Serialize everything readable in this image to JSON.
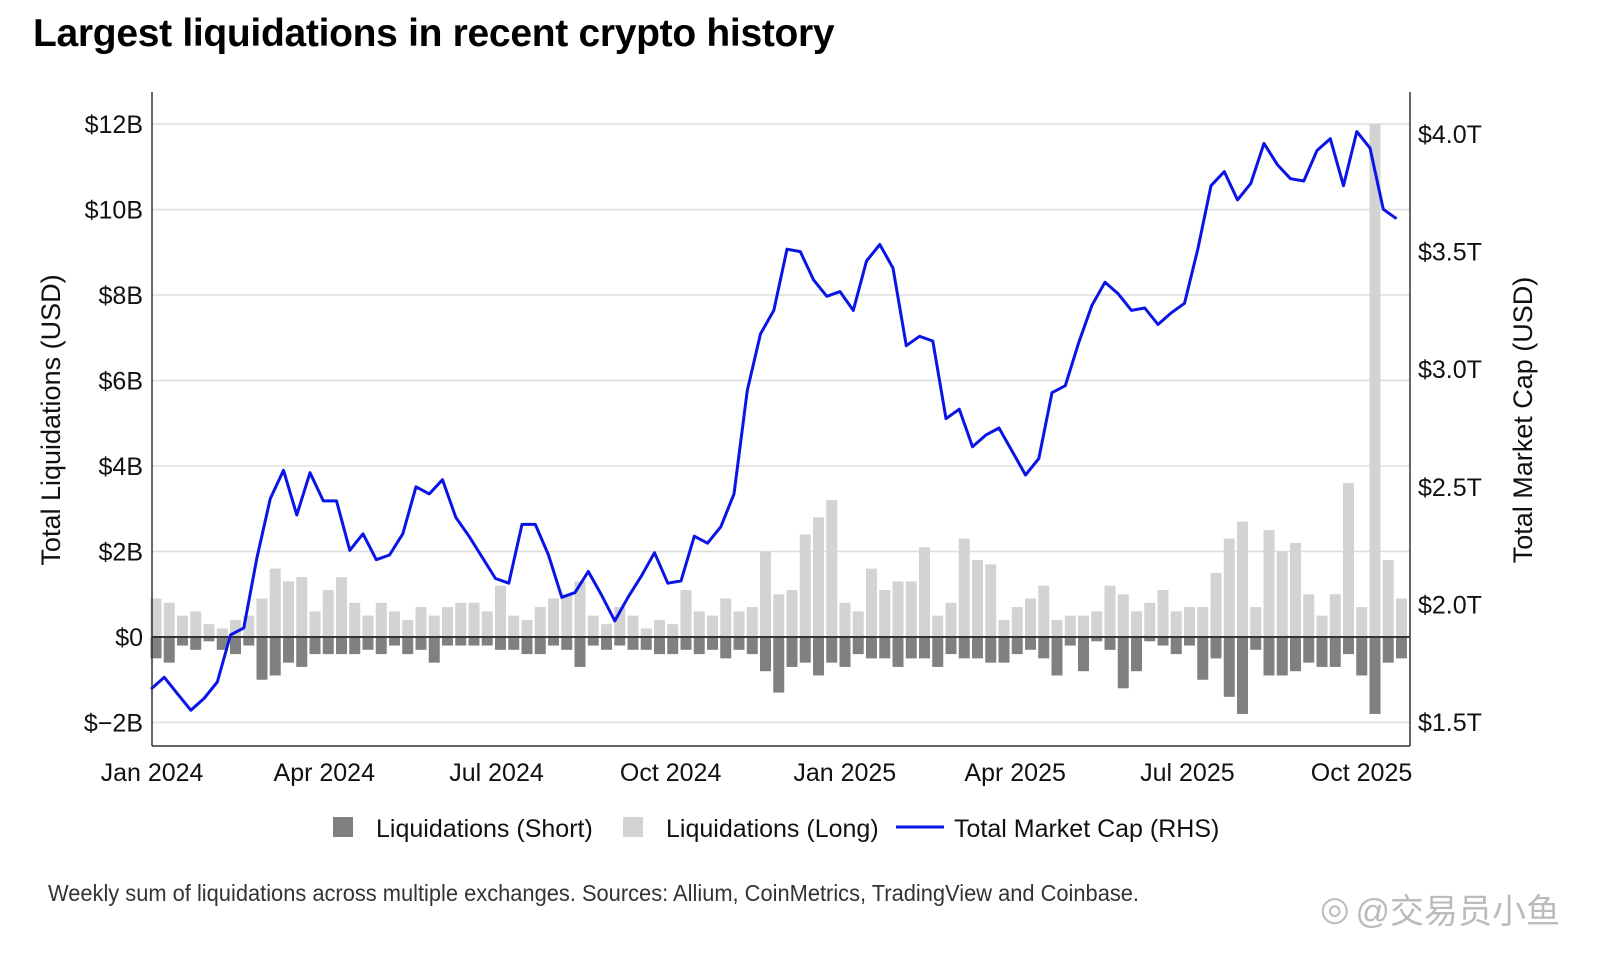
{
  "title": "Largest liquidations in recent crypto history",
  "footnote": "Weekly sum of liquidations across multiple exchanges. Sources: Allium, CoinMetrics, TradingView and Coinbase.",
  "watermark": "@交易员小鱼",
  "chart_data": {
    "type": "bar+line",
    "title": "Largest liquidations in recent crypto history",
    "ylabel": "Total Liquidations (USD)",
    "y2label": "Total Market Cap (USD)",
    "ylim": [
      -2.5,
      12.8
    ],
    "y2lim": [
      1.4,
      4.16
    ],
    "yticks": [
      {
        "v": 12,
        "label": "$12B"
      },
      {
        "v": 10,
        "label": "$10B"
      },
      {
        "v": 8,
        "label": "$8B"
      },
      {
        "v": 6,
        "label": "$6B"
      },
      {
        "v": 4,
        "label": "$4B"
      },
      {
        "v": 2,
        "label": "$2B"
      },
      {
        "v": 0,
        "label": "$0"
      },
      {
        "v": -2,
        "label": "$−2B"
      }
    ],
    "y2ticks": [
      {
        "v": 4.0,
        "label": "$4.0T"
      },
      {
        "v": 3.5,
        "label": "$3.5T"
      },
      {
        "v": 3.0,
        "label": "$3.0T"
      },
      {
        "v": 2.5,
        "label": "$2.5T"
      },
      {
        "v": 2.0,
        "label": "$2.0T"
      },
      {
        "v": 1.5,
        "label": "$1.5T"
      }
    ],
    "xticks": [
      {
        "date": "2024-01-01",
        "label": "Jan 2024"
      },
      {
        "date": "2024-04-01",
        "label": "Apr 2024"
      },
      {
        "date": "2024-07-01",
        "label": "Jul 2024"
      },
      {
        "date": "2024-10-01",
        "label": "Oct 2024"
      },
      {
        "date": "2025-01-01",
        "label": "Jan 2025"
      },
      {
        "date": "2025-04-01",
        "label": "Apr 2025"
      },
      {
        "date": "2025-07-01",
        "label": "Jul 2025"
      },
      {
        "date": "2025-10-01",
        "label": "Oct 2025"
      }
    ],
    "grid": true,
    "legend_position": "bottom",
    "colors": {
      "short": "#808080",
      "long": "#d3d3d3",
      "market_cap": "#0a14e6"
    },
    "x": [
      "2024-01-01",
      "2024-01-08",
      "2024-01-15",
      "2024-01-22",
      "2024-01-29",
      "2024-02-05",
      "2024-02-12",
      "2024-02-19",
      "2024-02-26",
      "2024-03-04",
      "2024-03-11",
      "2024-03-18",
      "2024-03-25",
      "2024-04-01",
      "2024-04-08",
      "2024-04-15",
      "2024-04-22",
      "2024-04-29",
      "2024-05-06",
      "2024-05-13",
      "2024-05-20",
      "2024-05-27",
      "2024-06-03",
      "2024-06-10",
      "2024-06-17",
      "2024-06-24",
      "2024-07-01",
      "2024-07-08",
      "2024-07-15",
      "2024-07-22",
      "2024-07-29",
      "2024-08-05",
      "2024-08-12",
      "2024-08-19",
      "2024-08-26",
      "2024-09-02",
      "2024-09-09",
      "2024-09-16",
      "2024-09-23",
      "2024-09-30",
      "2024-10-07",
      "2024-10-14",
      "2024-10-21",
      "2024-10-28",
      "2024-11-04",
      "2024-11-11",
      "2024-11-18",
      "2024-11-25",
      "2024-12-02",
      "2024-12-09",
      "2024-12-16",
      "2024-12-23",
      "2024-12-30",
      "2025-01-06",
      "2025-01-13",
      "2025-01-20",
      "2025-01-27",
      "2025-02-03",
      "2025-02-10",
      "2025-02-17",
      "2025-02-24",
      "2025-03-03",
      "2025-03-10",
      "2025-03-17",
      "2025-03-24",
      "2025-03-31",
      "2025-04-07",
      "2025-04-14",
      "2025-04-21",
      "2025-04-28",
      "2025-05-05",
      "2025-05-12",
      "2025-05-19",
      "2025-05-26",
      "2025-06-02",
      "2025-06-09",
      "2025-06-16",
      "2025-06-23",
      "2025-06-30",
      "2025-07-07",
      "2025-07-14",
      "2025-07-21",
      "2025-07-28",
      "2025-08-04",
      "2025-08-11",
      "2025-08-18",
      "2025-08-25",
      "2025-09-01",
      "2025-09-08",
      "2025-09-15",
      "2025-09-22",
      "2025-09-29",
      "2025-10-06",
      "2025-10-13",
      "2025-10-20"
    ],
    "series": [
      {
        "name": "Liquidations (Short)",
        "type": "bar",
        "unit": "B USD",
        "values": [
          -0.5,
          -0.6,
          -0.2,
          -0.3,
          -0.1,
          -0.3,
          -0.4,
          -0.2,
          -1.0,
          -0.9,
          -0.6,
          -0.7,
          -0.4,
          -0.4,
          -0.4,
          -0.4,
          -0.3,
          -0.4,
          -0.2,
          -0.4,
          -0.3,
          -0.6,
          -0.2,
          -0.2,
          -0.2,
          -0.2,
          -0.3,
          -0.3,
          -0.4,
          -0.4,
          -0.2,
          -0.3,
          -0.7,
          -0.2,
          -0.3,
          -0.2,
          -0.3,
          -0.3,
          -0.4,
          -0.4,
          -0.3,
          -0.4,
          -0.3,
          -0.5,
          -0.3,
          -0.4,
          -0.8,
          -1.3,
          -0.7,
          -0.6,
          -0.9,
          -0.6,
          -0.7,
          -0.4,
          -0.5,
          -0.5,
          -0.7,
          -0.5,
          -0.5,
          -0.7,
          -0.4,
          -0.5,
          -0.5,
          -0.6,
          -0.6,
          -0.4,
          -0.3,
          -0.5,
          -0.9,
          -0.2,
          -0.8,
          -0.1,
          -0.3,
          -1.2,
          -0.8,
          -0.1,
          -0.2,
          -0.4,
          -0.2,
          -1.0,
          -0.5,
          -1.4,
          -1.8,
          -0.3,
          -0.9,
          -0.9,
          -0.8,
          -0.6,
          -0.7,
          -0.7,
          -0.4,
          -0.9,
          -1.8,
          -0.6,
          -0.5
        ]
      },
      {
        "name": "Liquidations (Long)",
        "type": "bar",
        "unit": "B USD",
        "values": [
          0.9,
          0.8,
          0.5,
          0.6,
          0.3,
          0.2,
          0.4,
          0.5,
          0.9,
          1.6,
          1.3,
          1.4,
          0.6,
          1.1,
          1.4,
          0.8,
          0.5,
          0.8,
          0.6,
          0.4,
          0.7,
          0.5,
          0.7,
          0.8,
          0.8,
          0.6,
          1.2,
          0.5,
          0.4,
          0.7,
          0.9,
          1.0,
          1.3,
          0.5,
          0.3,
          0.7,
          0.5,
          0.2,
          0.4,
          0.3,
          1.1,
          0.6,
          0.5,
          0.9,
          0.6,
          0.7,
          2.0,
          1.0,
          1.1,
          2.4,
          2.8,
          3.2,
          0.8,
          0.6,
          1.6,
          1.1,
          1.3,
          1.3,
          2.1,
          0.5,
          0.8,
          2.3,
          1.8,
          1.7,
          0.4,
          0.7,
          0.9,
          1.2,
          0.4,
          0.5,
          0.5,
          0.6,
          1.2,
          1.0,
          0.6,
          0.8,
          1.1,
          0.6,
          0.7,
          0.7,
          1.5,
          2.3,
          2.7,
          0.7,
          2.5,
          2.0,
          2.2,
          1.0,
          0.5,
          1.0,
          3.6,
          0.7,
          12.0,
          1.8,
          0.9
        ]
      },
      {
        "name": "Total Market Cap (RHS)",
        "type": "line",
        "unit": "T USD",
        "axis": "right",
        "values": [
          1.64,
          1.69,
          1.62,
          1.55,
          1.6,
          1.67,
          1.87,
          1.9,
          2.2,
          2.45,
          2.57,
          2.38,
          2.56,
          2.44,
          2.44,
          2.23,
          2.3,
          2.19,
          2.21,
          2.3,
          2.5,
          2.47,
          2.53,
          2.37,
          2.29,
          2.2,
          2.11,
          2.09,
          2.34,
          2.34,
          2.21,
          2.03,
          2.05,
          2.14,
          2.04,
          1.93,
          2.03,
          2.12,
          2.22,
          2.09,
          2.1,
          2.29,
          2.26,
          2.33,
          2.47,
          2.91,
          3.15,
          3.25,
          3.51,
          3.5,
          3.38,
          3.31,
          3.33,
          3.25,
          3.46,
          3.53,
          3.43,
          3.1,
          3.14,
          3.12,
          2.79,
          2.83,
          2.67,
          2.72,
          2.75,
          2.65,
          2.55,
          2.62,
          2.9,
          2.93,
          3.11,
          3.27,
          3.37,
          3.32,
          3.25,
          3.26,
          3.19,
          3.24,
          3.28,
          3.51,
          3.78,
          3.84,
          3.72,
          3.79,
          3.96,
          3.87,
          3.81,
          3.8,
          3.93,
          3.98,
          3.78,
          4.01,
          3.94,
          3.68,
          3.64
        ]
      }
    ],
    "legend": [
      "Liquidations (Short)",
      "Liquidations (Long)",
      "Total Market Cap (RHS)"
    ]
  }
}
